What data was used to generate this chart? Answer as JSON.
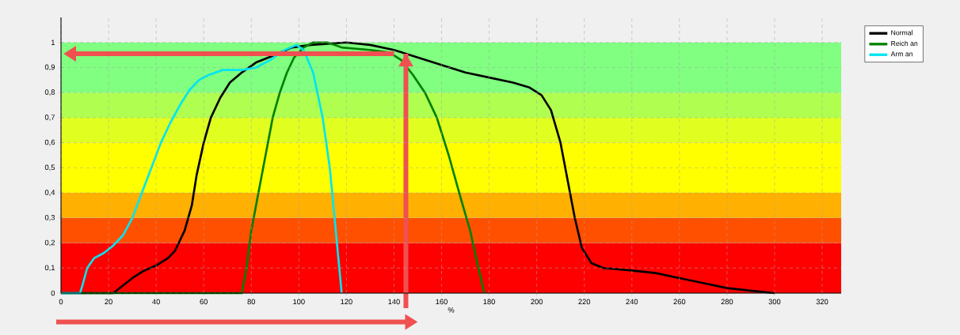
{
  "chart_data": {
    "type": "line",
    "xlabel": "%",
    "xlim": [
      0,
      328
    ],
    "ylim": [
      0,
      1.1
    ],
    "xticks": [
      0,
      20,
      40,
      60,
      80,
      100,
      120,
      140,
      160,
      180,
      200,
      220,
      240,
      260,
      280,
      300,
      320
    ],
    "yticks": [
      0,
      {
        "value": 0.1,
        "label": "0,1"
      },
      {
        "value": 0.2,
        "label": "0,2"
      },
      {
        "value": 0.3,
        "label": "0,3"
      },
      {
        "value": 0.4,
        "label": "0,4"
      },
      {
        "value": 0.5,
        "label": "0,5"
      },
      {
        "value": 0.6,
        "label": "0,6"
      },
      {
        "value": 0.7,
        "label": "0,7"
      },
      {
        "value": 0.8,
        "label": "0,8"
      },
      {
        "value": 0.9,
        "label": "0,9"
      },
      1
    ],
    "grid": true,
    "legend": "top right",
    "marker": "none",
    "line_style": "solid",
    "ref_lines": [
      {
        "axis": "x",
        "value": 145,
        "color": "#f05050"
      }
    ],
    "bands": [
      {
        "axis": "y",
        "from": 0,
        "to": 0.2,
        "color": "#ff0000"
      },
      {
        "axis": "y",
        "from": 0.2,
        "to": 0.3,
        "color": "#ff5000"
      },
      {
        "axis": "y",
        "from": 0.3,
        "to": 0.4,
        "color": "#ffb000"
      },
      {
        "axis": "y",
        "from": 0.4,
        "to": 0.6,
        "color": "#ffff00"
      },
      {
        "axis": "y",
        "from": 0.6,
        "to": 0.7,
        "color": "#e0ff20"
      },
      {
        "axis": "y",
        "from": 0.7,
        "to": 0.8,
        "color": "#b0ff50"
      },
      {
        "axis": "y",
        "from": 0.8,
        "to": 1,
        "color": "#80ff80"
      }
    ],
    "series": [
      {
        "name": "Normal",
        "color": "#000000",
        "x": [
          0,
          22,
          26,
          30,
          35,
          40,
          45,
          48,
          52,
          55,
          57,
          60,
          63,
          67,
          71,
          76,
          82,
          90,
          97,
          105,
          120,
          130,
          140,
          150,
          160,
          170,
          180,
          190,
          197,
          202,
          206,
          210,
          213,
          216,
          219,
          223,
          228,
          240,
          250,
          260,
          270,
          280,
          290,
          300
        ],
        "values": [
          0,
          0,
          0.03,
          0.06,
          0.09,
          0.11,
          0.14,
          0.17,
          0.25,
          0.35,
          0.47,
          0.6,
          0.7,
          0.78,
          0.84,
          0.88,
          0.92,
          0.95,
          0.98,
          0.99,
          1.0,
          0.99,
          0.97,
          0.94,
          0.91,
          0.88,
          0.86,
          0.84,
          0.82,
          0.79,
          0.73,
          0.6,
          0.45,
          0.3,
          0.18,
          0.12,
          0.1,
          0.09,
          0.08,
          0.06,
          0.04,
          0.02,
          0.01,
          0
        ]
      },
      {
        "name": "Reich an",
        "color": "#008000",
        "x": [
          0,
          76,
          78,
          80,
          83,
          86,
          89,
          92,
          95,
          98,
          102,
          106,
          112,
          118,
          130,
          138,
          143,
          148,
          153,
          158,
          163,
          168,
          172,
          175,
          178
        ],
        "values": [
          0,
          0,
          0.1,
          0.25,
          0.4,
          0.55,
          0.7,
          0.8,
          0.88,
          0.94,
          0.98,
          1.0,
          1.0,
          0.98,
          0.97,
          0.96,
          0.93,
          0.87,
          0.8,
          0.7,
          0.55,
          0.38,
          0.25,
          0.12,
          0
        ]
      },
      {
        "name": "Arm an",
        "color": "#00e5f0",
        "x": [
          0,
          8,
          9,
          11,
          14,
          18,
          22,
          26,
          30,
          34,
          38,
          42,
          46,
          50,
          54,
          58,
          62,
          68,
          76,
          82,
          88,
          94,
          99,
          102,
          106,
          110,
          113,
          115,
          117,
          118
        ],
        "values": [
          0,
          0,
          0.03,
          0.1,
          0.14,
          0.16,
          0.19,
          0.23,
          0.3,
          0.4,
          0.5,
          0.6,
          0.68,
          0.75,
          0.81,
          0.85,
          0.87,
          0.89,
          0.89,
          0.9,
          0.93,
          0.97,
          0.99,
          0.97,
          0.88,
          0.7,
          0.5,
          0.3,
          0.1,
          0
        ]
      }
    ]
  }
}
